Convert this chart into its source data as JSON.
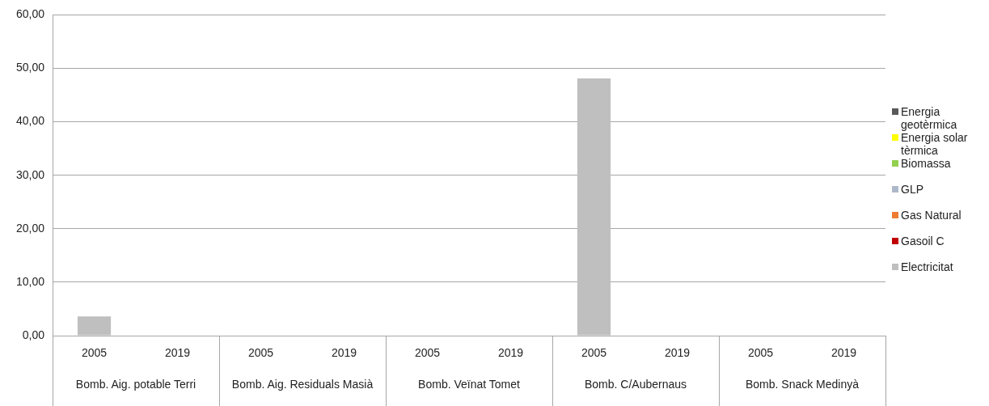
{
  "chart_data": {
    "type": "bar",
    "stacked": true,
    "categories": [
      "2005",
      "2019",
      "2005",
      "2019",
      "2005",
      "2019",
      "2005",
      "2019",
      "2005",
      "2019"
    ],
    "annotations": [
      "Bomb. Aig. potable Terri",
      "Bomb. Aig. Residuals Masià",
      "Bomb. Veïnat Tomet",
      "Bomb. C/Aubernaus",
      "Bomb. Snack Medinyà"
    ],
    "series": [
      {
        "name": "Electricitat",
        "color": "#bfbfbf",
        "values": [
          3.6,
          0,
          0,
          0,
          0,
          0,
          48.1,
          0,
          0,
          0
        ]
      },
      {
        "name": "Gasoil C",
        "color": "#c00000",
        "values": [
          0,
          0,
          0,
          0,
          0,
          0,
          0,
          0,
          0,
          0
        ]
      },
      {
        "name": "Gas Natural",
        "color": "#ed7d31",
        "values": [
          0,
          0,
          0,
          0,
          0,
          0,
          0,
          0,
          0,
          0
        ]
      },
      {
        "name": "GLP",
        "color": "#adb9ca",
        "values": [
          0,
          0,
          0,
          0,
          0,
          0,
          0,
          0,
          0,
          0
        ]
      },
      {
        "name": "Biomassa",
        "color": "#92d050",
        "values": [
          0,
          0,
          0,
          0,
          0,
          0,
          0,
          0,
          0,
          0
        ]
      },
      {
        "name": "Energia solar tèrmica",
        "color": "#ffff00",
        "values": [
          0,
          0,
          0,
          0,
          0,
          0,
          0,
          0,
          0,
          0
        ]
      },
      {
        "name": "Energia geotèrmica",
        "color": "#595959",
        "values": [
          0,
          0,
          0,
          0,
          0,
          0,
          0,
          0,
          0,
          0
        ]
      }
    ],
    "ylim": [
      0,
      60
    ],
    "yticks": [
      {
        "value": 0,
        "label": "0,00"
      },
      {
        "value": 10,
        "label": "10,00"
      },
      {
        "value": 20,
        "label": "20,00"
      },
      {
        "value": 30,
        "label": "30,00"
      },
      {
        "value": 40,
        "label": "40,00"
      },
      {
        "value": 50,
        "label": "50,00"
      },
      {
        "value": 60,
        "label": "60,00"
      }
    ],
    "grid": "y",
    "legend": "right"
  }
}
